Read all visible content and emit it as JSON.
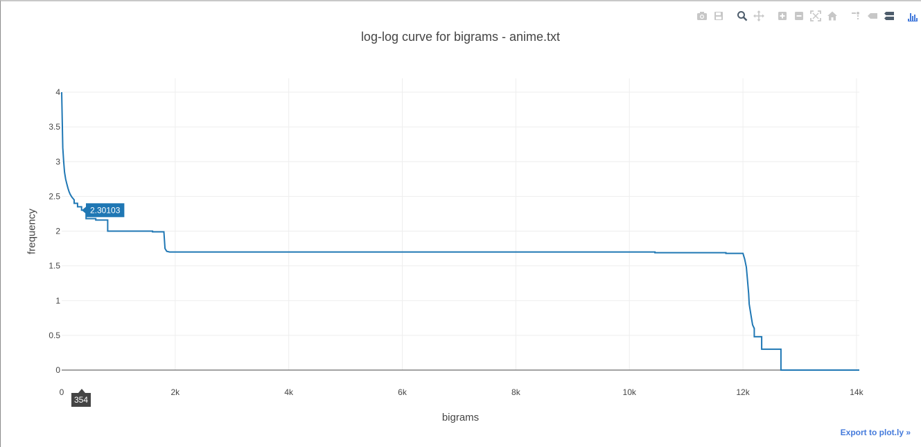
{
  "modebar": {
    "buttons": [
      {
        "icon": "camera-icon"
      },
      {
        "icon": "save-icon"
      },
      {
        "icon": "zoom-icon"
      },
      {
        "icon": "pan-icon"
      },
      {
        "icon": "zoom-in-icon"
      },
      {
        "icon": "zoom-out-icon"
      },
      {
        "icon": "autoscale-icon"
      },
      {
        "icon": "reset-axes-icon"
      },
      {
        "icon": "spike-lines-icon"
      },
      {
        "icon": "hover-closest-icon"
      },
      {
        "icon": "hover-compare-icon"
      },
      {
        "icon": "plotly-logo-icon"
      }
    ],
    "inactive_color": "#c7c7c7",
    "active_color": "#4e5d6c",
    "logo_color": "#447adb"
  },
  "export_link": "Export to plot.ly »",
  "hover": {
    "y_label": "2.30103",
    "x_label": "354"
  },
  "chart_data": {
    "type": "line",
    "title": "log-log curve for bigrams - anime.txt",
    "xlabel": "bigrams",
    "ylabel": "frequency",
    "xlim": [
      0,
      14050
    ],
    "ylim": [
      0,
      4
    ],
    "x_ticks": [
      0,
      2000,
      4000,
      6000,
      8000,
      10000,
      12000,
      14000
    ],
    "x_tick_labels": [
      "0",
      "2k",
      "4k",
      "6k",
      "8k",
      "10k",
      "12k",
      "14k"
    ],
    "y_ticks": [
      0,
      0.5,
      1,
      1.5,
      2,
      2.5,
      3,
      3.5,
      4
    ],
    "y_tick_labels": [
      "0",
      "0.5",
      "1",
      "1.5",
      "2",
      "2.5",
      "3",
      "3.5",
      "4"
    ],
    "grid": true,
    "line_color": "#1f77b4",
    "series": [
      {
        "x": [
          0,
          10,
          20,
          35,
          50,
          70,
          90,
          110,
          130,
          150,
          180,
          220,
          220,
          280,
          280,
          350,
          350,
          430,
          430,
          600,
          600,
          810,
          810,
          1600,
          1600,
          1800,
          1820,
          1850,
          1900,
          10450,
          10450,
          11700,
          11700,
          12000,
          12030,
          12060,
          12080,
          12100,
          12110,
          12130,
          12150,
          12170,
          12200,
          12200,
          12230,
          12230,
          12330,
          12330,
          12670,
          12670,
          14050
        ],
        "y": [
          4.0,
          3.6,
          3.2,
          3.0,
          2.85,
          2.75,
          2.68,
          2.62,
          2.57,
          2.53,
          2.49,
          2.45,
          2.4,
          2.4,
          2.35,
          2.35,
          2.30103,
          2.30103,
          2.18,
          2.18,
          2.16,
          2.16,
          2.0,
          2.0,
          1.99,
          1.99,
          1.75,
          1.71,
          1.7,
          1.7,
          1.69,
          1.69,
          1.68,
          1.68,
          1.6,
          1.48,
          1.3,
          1.1,
          0.95,
          0.85,
          0.75,
          0.65,
          0.6,
          0.48,
          0.48,
          0.48,
          0.48,
          0.3,
          0.3,
          0.0,
          0.0
        ]
      }
    ]
  }
}
